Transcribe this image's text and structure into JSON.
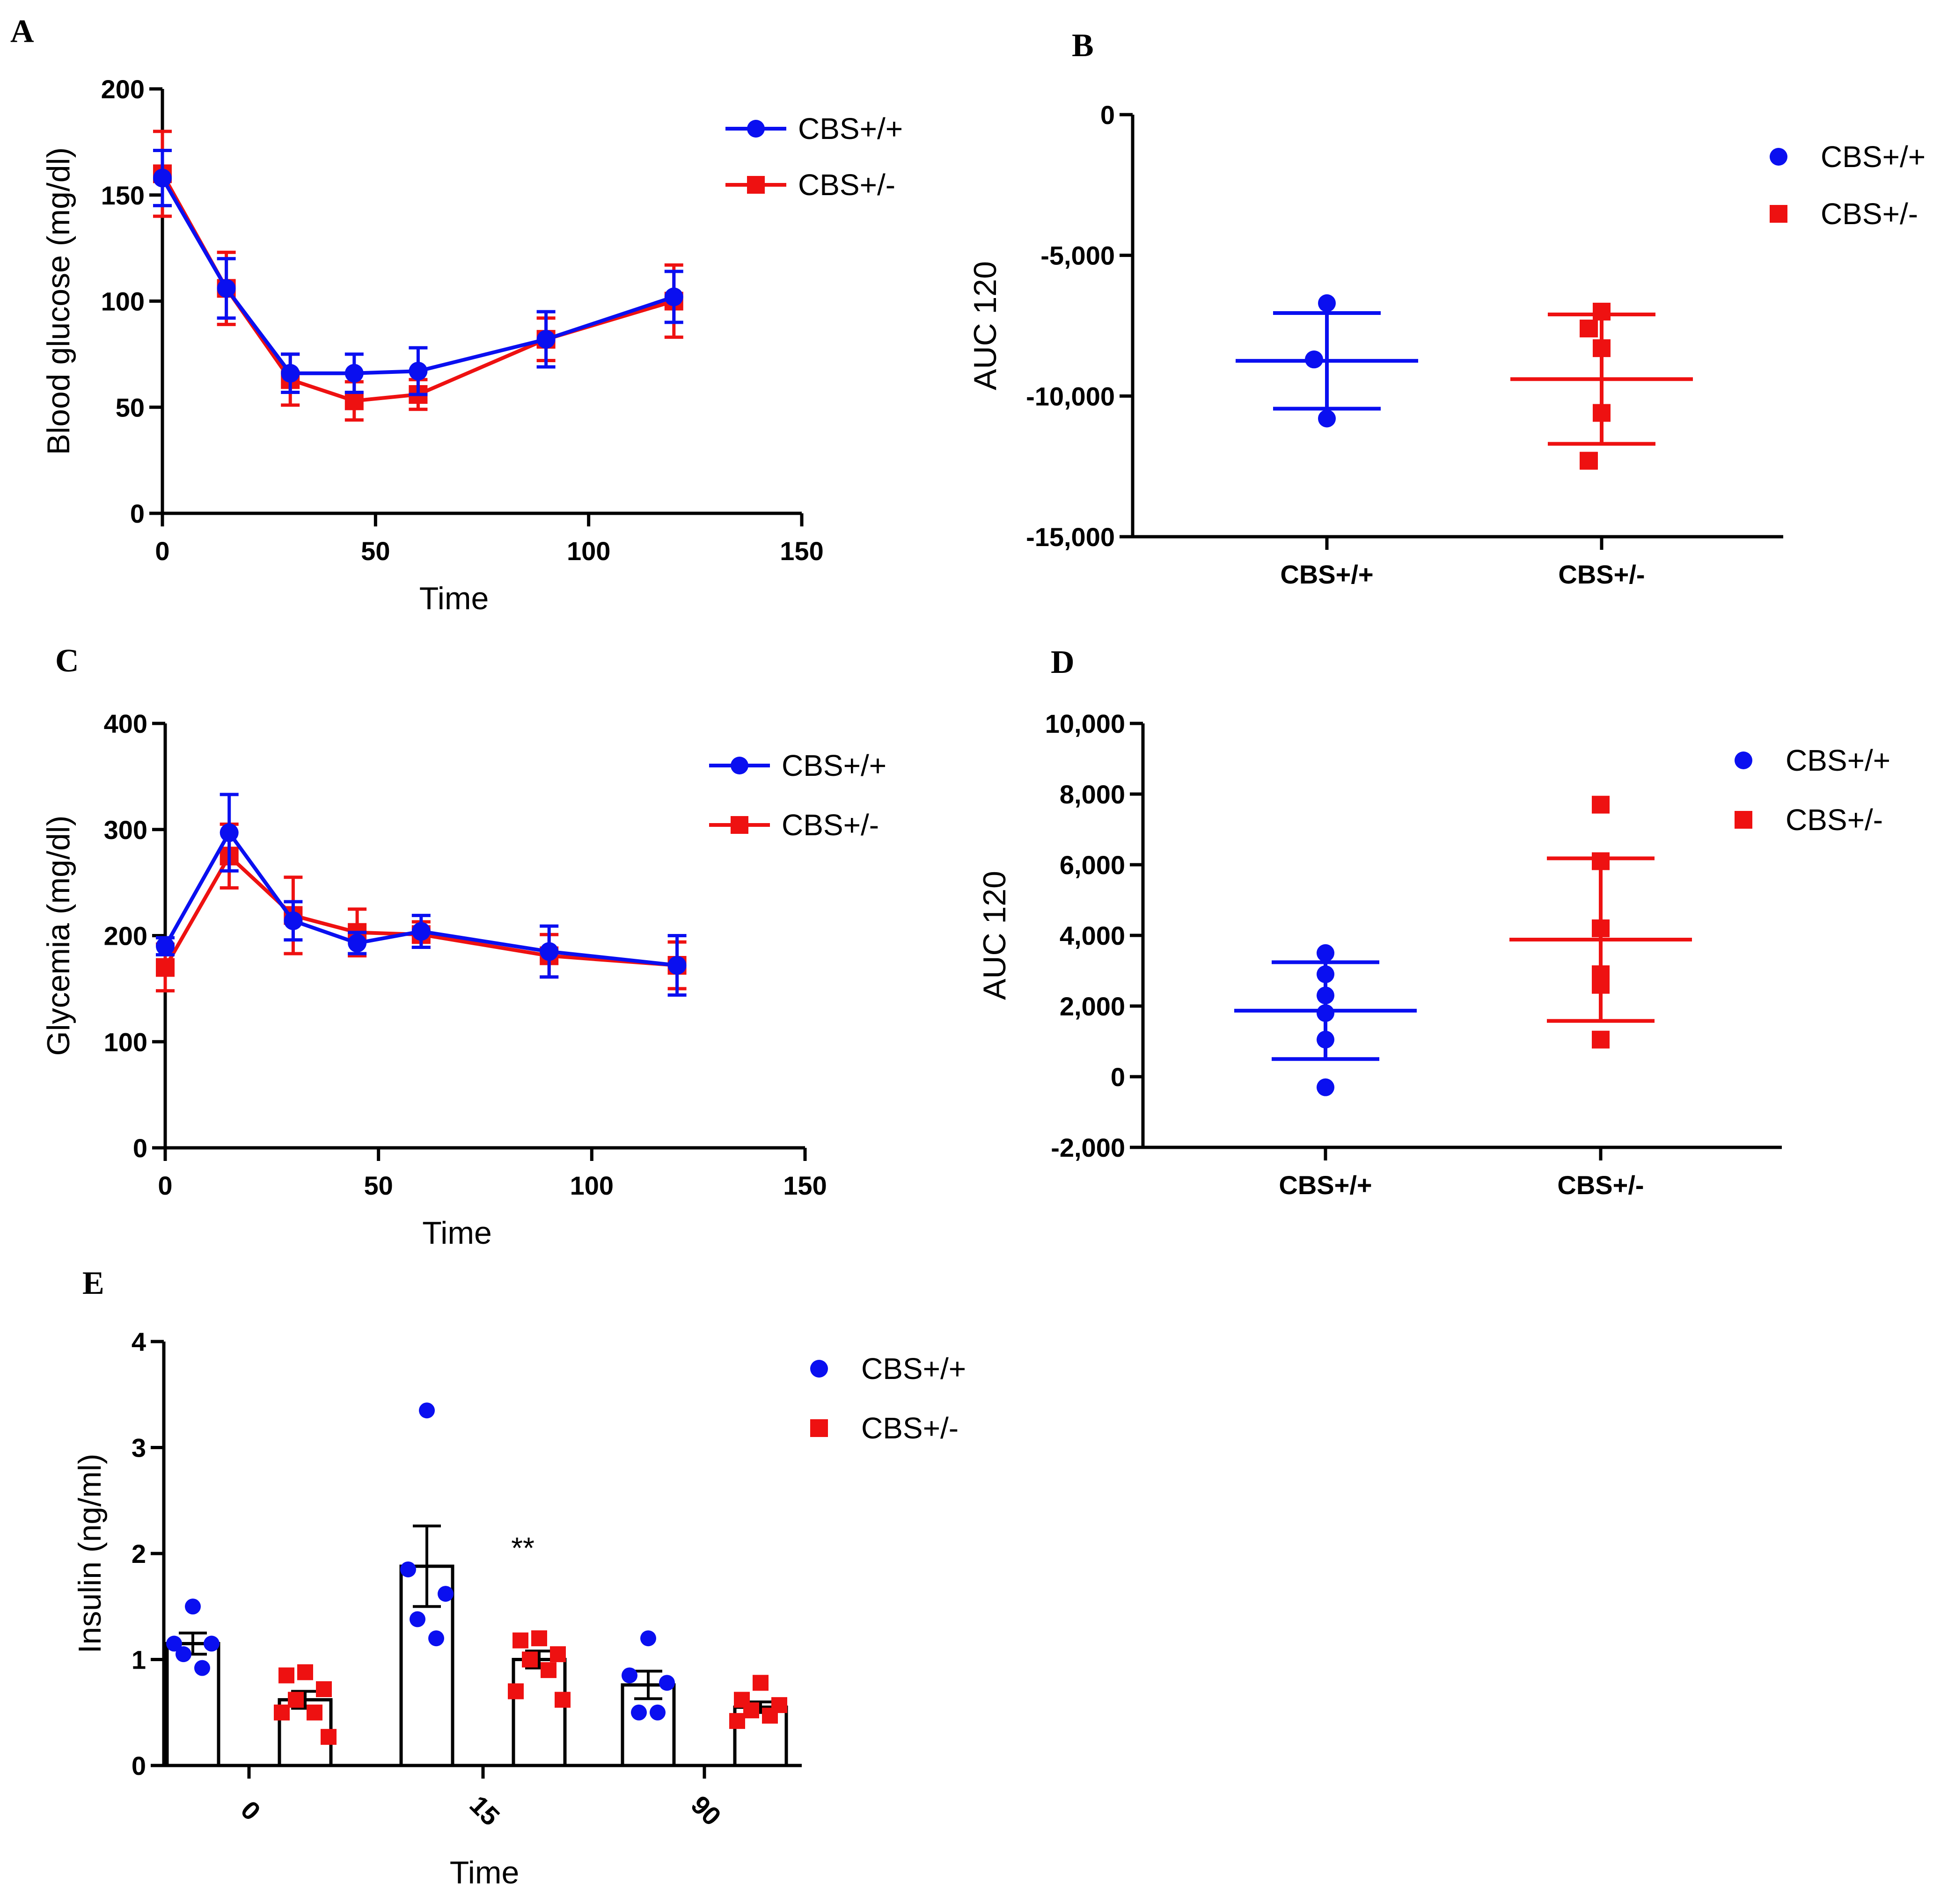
{
  "figure": {
    "panel_labels": [
      "A",
      "B",
      "C",
      "D",
      "E"
    ],
    "colors": {
      "wt": "#0a0ff0",
      "het": "#ee1111",
      "axis": "#000000"
    }
  },
  "chart_data": [
    {
      "id": "A",
      "type": "line",
      "ylabel": "Blood glucose (mg/dl)",
      "xlabel": "Time",
      "xlim": [
        0,
        150
      ],
      "xticks": [
        0,
        50,
        100,
        150
      ],
      "ylim": [
        0,
        200
      ],
      "yticks": [
        0,
        50,
        100,
        150,
        200
      ],
      "x": [
        0,
        15,
        30,
        45,
        60,
        90,
        120
      ],
      "series": [
        {
          "name": "CBS+/+",
          "marker": "circle",
          "values": [
            158,
            106,
            66,
            66,
            67,
            82,
            102
          ],
          "err": [
            13,
            14,
            9,
            9,
            11,
            13,
            12
          ]
        },
        {
          "name": "CBS+/-",
          "marker": "square",
          "values": [
            160,
            106,
            63,
            53,
            56,
            82,
            100
          ],
          "err": [
            20,
            17,
            12,
            9,
            7,
            10,
            17
          ]
        }
      ]
    },
    {
      "id": "B",
      "type": "scatter",
      "ylabel": "AUC 120",
      "ylim": [
        -15000,
        0
      ],
      "yticks": [
        0,
        -5000,
        -10000,
        -15000
      ],
      "ytick_labels": [
        "0",
        "-5,000",
        "-10,000",
        "-15,000"
      ],
      "categories": [
        "CBS+/+",
        "CBS+/-"
      ],
      "groups": [
        {
          "name": "CBS+/+",
          "marker": "circle",
          "points": [
            -6700,
            -8700,
            -8700,
            -10800
          ],
          "mean": -8750,
          "sd": 1700
        },
        {
          "name": "CBS+/-",
          "marker": "square",
          "points": [
            -7000,
            -7600,
            -7600,
            -8300,
            -10600,
            -12300,
            -12300
          ],
          "mean": -9400,
          "sd": 2300
        }
      ]
    },
    {
      "id": "C",
      "type": "line",
      "ylabel": "Glycemia (mg/dl)",
      "xlabel": "Time",
      "xlim": [
        0,
        150
      ],
      "xticks": [
        0,
        50,
        100,
        150
      ],
      "ylim": [
        0,
        400
      ],
      "yticks": [
        0,
        100,
        200,
        300,
        400
      ],
      "x": [
        0,
        15,
        30,
        45,
        60,
        90,
        120
      ],
      "series": [
        {
          "name": "CBS+/+",
          "marker": "circle",
          "values": [
            190,
            297,
            214,
            193,
            204,
            185,
            172
          ],
          "err": [
            8,
            36,
            18,
            10,
            15,
            24,
            28
          ]
        },
        {
          "name": "CBS+/-",
          "marker": "square",
          "values": [
            170,
            275,
            219,
            203,
            201,
            181,
            172
          ],
          "err": [
            22,
            30,
            36,
            22,
            12,
            20,
            22
          ]
        }
      ]
    },
    {
      "id": "D",
      "type": "scatter",
      "ylabel": "AUC 120",
      "ylim": [
        -2000,
        10000
      ],
      "yticks": [
        -2000,
        0,
        2000,
        4000,
        6000,
        8000,
        10000
      ],
      "ytick_labels": [
        "-2,000",
        "0",
        "2,000",
        "4,000",
        "6,000",
        "8,000",
        "10,000"
      ],
      "categories": [
        "CBS+/+",
        "CBS+/-"
      ],
      "groups": [
        {
          "name": "CBS+/+",
          "marker": "circle",
          "points": [
            3500,
            2900,
            2300,
            1800,
            1050,
            -300
          ],
          "mean": 1870,
          "sd": 1370
        },
        {
          "name": "CBS+/-",
          "marker": "square",
          "points": [
            7700,
            6100,
            4200,
            2900,
            2650,
            2600,
            1050
          ],
          "mean": 3880,
          "sd": 2300
        }
      ]
    },
    {
      "id": "E",
      "type": "bar",
      "ylabel": "Insulin (ng/ml)",
      "xlabel": "Time",
      "ylim": [
        0,
        4
      ],
      "yticks": [
        0,
        1,
        2,
        3,
        4
      ],
      "categories": [
        "0",
        "15",
        "90"
      ],
      "annotation": "**",
      "series": [
        {
          "name": "CBS+/+",
          "marker": "circle",
          "values": [
            1.15,
            1.88,
            0.76
          ],
          "err": [
            0.1,
            0.38,
            0.13
          ],
          "points": [
            [
              1.5,
              1.15,
              1.15,
              1.05,
              0.92
            ],
            [
              3.35,
              1.85,
              1.62,
              1.38,
              1.2
            ],
            [
              1.2,
              0.85,
              0.78,
              0.5,
              0.5
            ]
          ]
        },
        {
          "name": "CBS+/-",
          "marker": "square",
          "values": [
            0.62,
            1.0,
            0.55
          ],
          "err": [
            0.08,
            0.08,
            0.05
          ],
          "points": [
            [
              0.88,
              0.85,
              0.72,
              0.62,
              0.5,
              0.5,
              0.27
            ],
            [
              1.2,
              1.18,
              1.05,
              1.0,
              0.9,
              0.7,
              0.62
            ],
            [
              0.78,
              0.62,
              0.57,
              0.52,
              0.47,
              0.42
            ]
          ]
        }
      ]
    }
  ]
}
